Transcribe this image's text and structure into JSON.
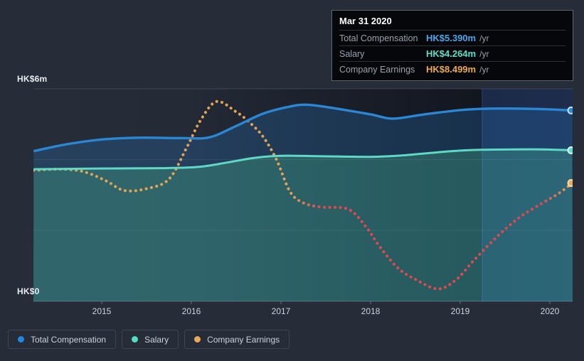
{
  "page": {
    "background": "#262c38"
  },
  "y_axis": {
    "top_label": "HK$6m",
    "bottom_label": "HK$0"
  },
  "x_axis": {
    "ticks": [
      "2015",
      "2016",
      "2017",
      "2018",
      "2019",
      "2020"
    ]
  },
  "tooltip": {
    "date": "Mar 31 2020",
    "rows": [
      {
        "label": "Total Compensation",
        "value": "HK$5.390m",
        "suffix": "/yr",
        "color": "#4aa6e8"
      },
      {
        "label": "Salary",
        "value": "HK$4.264m",
        "suffix": "/yr",
        "color": "#63dcc6"
      },
      {
        "label": "Company Earnings",
        "value": "HK$8.499m",
        "suffix": "/yr",
        "color": "#ebaa4d"
      }
    ]
  },
  "legend": [
    {
      "label": "Total Compensation",
      "color": "#2089dd"
    },
    {
      "label": "Salary",
      "color": "#52dcc0"
    },
    {
      "label": "Company Earnings",
      "color": "#e8a958"
    }
  ],
  "chart_data": {
    "type": "area",
    "title": "Executive compensation over time",
    "x_domain": [
      2014.238,
      2020.254
    ],
    "y_domain": [
      0,
      6
    ],
    "y_unit": "HK$m",
    "y_gridlines": [
      0,
      2,
      4,
      6
    ],
    "highlight_band_start": 2019.246,
    "legend_position": "bottom-left",
    "colors": {
      "total_compensation": "#2b87d3",
      "salary": "#5fd9c5",
      "earnings_positive": "#e3a455",
      "earnings_negative": "#e0494f",
      "band_background": "#1c2a49"
    },
    "series": [
      {
        "name": "Total Compensation",
        "style": "line-area",
        "color": "#2b87d3",
        "points": [
          [
            2014.24,
            4.24
          ],
          [
            2014.6,
            4.43
          ],
          [
            2015.0,
            4.57
          ],
          [
            2015.4,
            4.62
          ],
          [
            2015.9,
            4.61
          ],
          [
            2016.2,
            4.63
          ],
          [
            2016.5,
            4.95
          ],
          [
            2016.8,
            5.3
          ],
          [
            2017.1,
            5.5
          ],
          [
            2017.3,
            5.55
          ],
          [
            2017.6,
            5.45
          ],
          [
            2018.0,
            5.28
          ],
          [
            2018.25,
            5.16
          ],
          [
            2018.6,
            5.28
          ],
          [
            2019.0,
            5.4
          ],
          [
            2019.3,
            5.44
          ],
          [
            2019.7,
            5.44
          ],
          [
            2020.0,
            5.42
          ],
          [
            2020.25,
            5.39
          ]
        ]
      },
      {
        "name": "Salary",
        "style": "line-area",
        "color": "#5fd9c5",
        "points": [
          [
            2014.24,
            3.73
          ],
          [
            2015.0,
            3.75
          ],
          [
            2015.7,
            3.76
          ],
          [
            2016.1,
            3.8
          ],
          [
            2016.4,
            3.92
          ],
          [
            2016.7,
            4.05
          ],
          [
            2017.0,
            4.11
          ],
          [
            2017.4,
            4.1
          ],
          [
            2018.0,
            4.08
          ],
          [
            2018.4,
            4.13
          ],
          [
            2018.8,
            4.22
          ],
          [
            2019.1,
            4.27
          ],
          [
            2019.4,
            4.285
          ],
          [
            2019.9,
            4.29
          ],
          [
            2020.25,
            4.264
          ]
        ]
      },
      {
        "name": "Company Earnings",
        "style": "dotted",
        "color": "#e3a455",
        "note": "plotted on a separate hidden scale; values below are as read on the 0-6 compensation axis",
        "points": [
          [
            2014.24,
            3.7
          ],
          [
            2014.55,
            3.73
          ],
          [
            2014.8,
            3.66
          ],
          [
            2015.05,
            3.4
          ],
          [
            2015.25,
            3.13
          ],
          [
            2015.5,
            3.18
          ],
          [
            2015.75,
            3.45
          ],
          [
            2015.95,
            4.35
          ],
          [
            2016.1,
            5.1
          ],
          [
            2016.28,
            5.64
          ],
          [
            2016.5,
            5.35
          ],
          [
            2016.65,
            5.05
          ],
          [
            2016.8,
            4.65
          ],
          [
            2016.95,
            4.0
          ],
          [
            2017.1,
            3.1
          ],
          [
            2017.25,
            2.78
          ],
          [
            2017.45,
            2.66
          ],
          [
            2017.75,
            2.6
          ],
          [
            2017.95,
            2.1
          ],
          [
            2018.1,
            1.55
          ],
          [
            2018.3,
            0.95
          ],
          [
            2018.5,
            0.62
          ],
          [
            2018.75,
            0.35
          ],
          [
            2018.95,
            0.6
          ],
          [
            2019.15,
            1.15
          ],
          [
            2019.4,
            1.8
          ],
          [
            2019.65,
            2.35
          ],
          [
            2019.9,
            2.75
          ],
          [
            2020.1,
            3.05
          ],
          [
            2020.25,
            3.34
          ]
        ]
      }
    ],
    "hovered_point": {
      "date": "Mar 31 2020",
      "total_compensation": "HK$5.390m /yr",
      "salary": "HK$4.264m /yr",
      "company_earnings": "HK$8.499m /yr"
    }
  }
}
